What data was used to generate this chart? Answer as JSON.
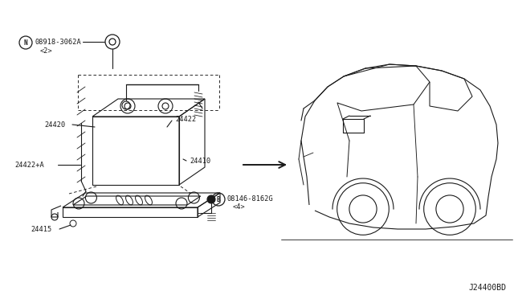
{
  "bg_color": "#ffffff",
  "line_color": "#1a1a1a",
  "lw": 0.8,
  "fig_width": 6.4,
  "fig_height": 3.72,
  "dpi": 100,
  "diagram_code": "J24400BD",
  "label_N_part": "08918-3062A",
  "label_N_sub": "<2>",
  "label_24420": "24420",
  "label_24422": "24422",
  "label_24422A": "24422+A",
  "label_24410": "24410",
  "label_24415": "24415",
  "label_B_part": "08146-8162G",
  "label_B_sub": "<4>"
}
